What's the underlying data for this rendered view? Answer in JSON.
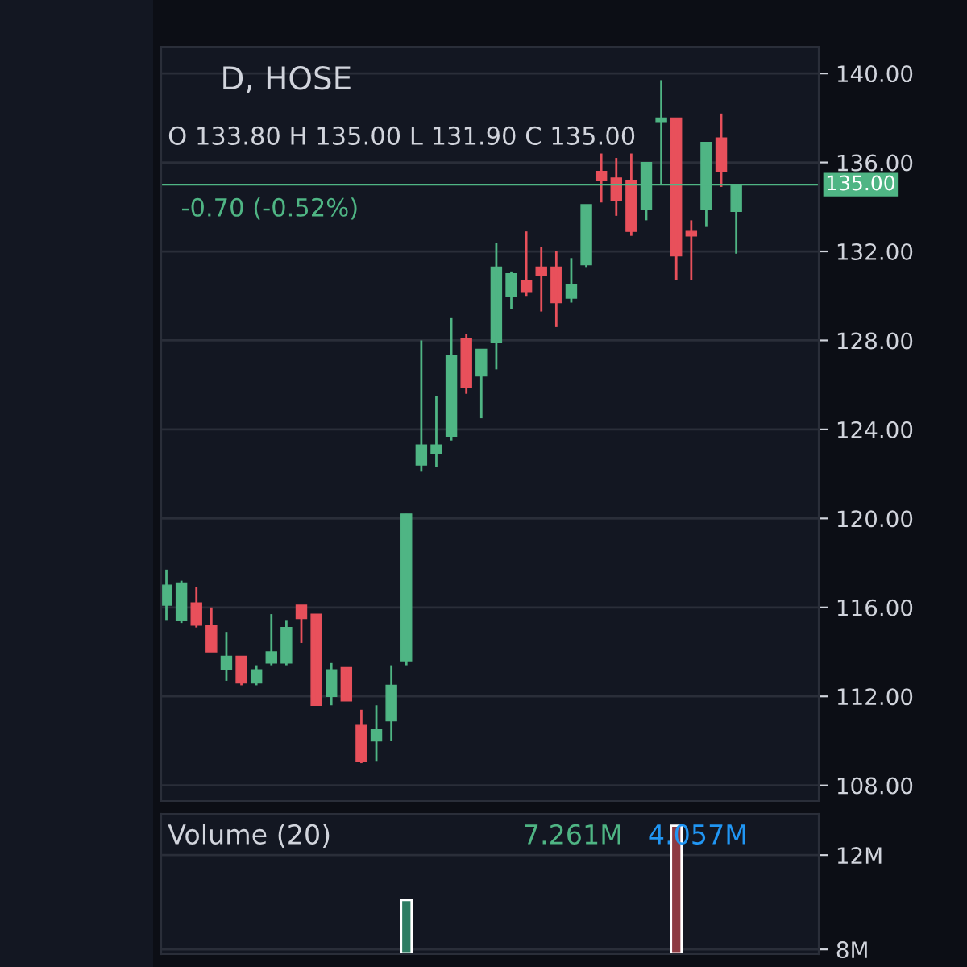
{
  "chart_data": [
    {
      "type": "candlestick",
      "title": "D, HOSE",
      "categories": [
        null,
        null,
        null,
        null,
        null,
        null,
        null,
        null,
        null,
        null,
        null,
        null,
        null,
        null,
        null,
        null,
        null,
        null,
        null,
        null,
        null,
        null,
        null,
        null,
        null,
        null,
        null,
        null,
        null,
        null,
        null,
        null,
        null,
        null,
        null,
        null,
        null,
        null,
        null
      ],
      "ohlc": [
        [
          116.1,
          117.7,
          115.4,
          117.0
        ],
        [
          115.4,
          117.2,
          115.3,
          117.1
        ],
        [
          116.2,
          116.9,
          115.1,
          115.2
        ],
        [
          115.2,
          116.0,
          114.0,
          114.0
        ],
        [
          113.2,
          114.9,
          112.7,
          113.8
        ],
        [
          113.8,
          113.8,
          112.5,
          112.6
        ],
        [
          112.6,
          113.4,
          112.5,
          113.2
        ],
        [
          113.5,
          115.7,
          113.4,
          114.0
        ],
        [
          113.5,
          115.4,
          113.4,
          115.1
        ],
        [
          116.1,
          116.1,
          114.4,
          115.5
        ],
        [
          115.7,
          115.7,
          111.6,
          111.6
        ],
        [
          112.0,
          113.5,
          111.6,
          113.2
        ],
        [
          113.3,
          113.3,
          111.8,
          111.8
        ],
        [
          110.7,
          111.4,
          109.0,
          109.1
        ],
        [
          110.0,
          111.6,
          109.1,
          110.5
        ],
        [
          110.9,
          113.4,
          110.0,
          112.5
        ],
        [
          113.6,
          120.2,
          113.4,
          120.2
        ],
        [
          122.4,
          128.0,
          122.1,
          123.3
        ],
        [
          122.9,
          125.5,
          122.3,
          123.3
        ],
        [
          123.7,
          129.0,
          123.5,
          127.3
        ],
        [
          128.1,
          128.3,
          125.6,
          125.9
        ],
        [
          126.4,
          127.6,
          124.5,
          127.6
        ],
        [
          127.9,
          132.4,
          126.7,
          131.3
        ],
        [
          130.0,
          131.1,
          129.4,
          131.0
        ],
        [
          130.7,
          132.9,
          130.0,
          130.2
        ],
        [
          131.3,
          132.2,
          129.3,
          130.9
        ],
        [
          131.3,
          132.0,
          128.6,
          129.7
        ],
        [
          129.9,
          131.7,
          129.7,
          130.5
        ],
        [
          131.4,
          134.1,
          131.3,
          134.1
        ],
        [
          135.6,
          136.4,
          134.2,
          135.2
        ],
        [
          135.3,
          136.2,
          133.6,
          134.3
        ],
        [
          135.2,
          136.4,
          132.7,
          132.9
        ],
        [
          133.9,
          136.0,
          133.4,
          136.0
        ],
        [
          137.8,
          139.7,
          135.0,
          138.0
        ],
        [
          138.0,
          138.0,
          130.7,
          131.8
        ],
        [
          132.9,
          133.4,
          130.7,
          132.7
        ],
        [
          133.9,
          136.9,
          133.1,
          136.9
        ],
        [
          137.1,
          138.2,
          134.9,
          135.6
        ],
        [
          133.8,
          135.0,
          131.9,
          135.0
        ]
      ],
      "colors": [
        "#4fb584",
        "#4fb584",
        "#e8505b",
        "#e8505b",
        "#4fb584",
        "#e8505b",
        "#4fb584",
        "#4fb584",
        "#4fb584",
        "#e8505b",
        "#e8505b",
        "#4fb584",
        "#e8505b",
        "#e8505b",
        "#4fb584",
        "#4fb584",
        "#4fb584",
        "#4fb584",
        "#4fb584",
        "#4fb584",
        "#e8505b",
        "#4fb584",
        "#4fb584",
        "#4fb584",
        "#e8505b",
        "#e8505b",
        "#e8505b",
        "#4fb584",
        "#4fb584",
        "#e8505b",
        "#e8505b",
        "#e8505b",
        "#4fb584",
        "#4fb584",
        "#e8505b",
        "#e8505b",
        "#4fb584",
        "#e8505b",
        "#4fb584"
      ],
      "ylim": [
        107.3,
        141.2
      ],
      "yticks": [
        {
          "value": 108,
          "label": "108.00"
        },
        {
          "value": 112,
          "label": "112.00"
        },
        {
          "value": 116,
          "label": "116.00"
        },
        {
          "value": 120,
          "label": "120.00"
        },
        {
          "value": 124,
          "label": "124.00"
        },
        {
          "value": 128,
          "label": "128.00"
        },
        {
          "value": 132,
          "label": "132.00"
        },
        {
          "value": 136,
          "label": "136.00"
        },
        {
          "value": 140,
          "label": "140.00"
        }
      ],
      "ref_lines": [
        {
          "axis": "y",
          "value": 135,
          "label": "135.00",
          "color": "#4fb584",
          "line_style": "solid"
        }
      ],
      "annotations": [
        "O 133.80 H 135.00 L 131.90 C 135.00",
        "-0.70 (-0.52%)"
      ],
      "grid": "y"
    },
    {
      "type": "bar",
      "title": "Volume (20)",
      "categories": [
        null,
        null,
        null,
        null,
        null,
        null,
        null,
        null,
        null,
        null,
        null,
        null,
        null,
        null,
        null,
        null,
        null,
        null,
        null,
        null,
        null,
        null,
        null,
        null,
        null,
        null,
        null,
        null,
        null,
        null,
        null,
        null,
        null,
        null,
        null,
        null,
        null,
        null,
        null
      ],
      "values": [
        null,
        null,
        null,
        null,
        null,
        null,
        null,
        null,
        null,
        null,
        null,
        null,
        null,
        null,
        null,
        null,
        10.1,
        null,
        null,
        null,
        null,
        null,
        null,
        null,
        null,
        null,
        null,
        null,
        null,
        null,
        null,
        null,
        null,
        null,
        13.25,
        null,
        null,
        null,
        null
      ],
      "colors": [
        "#2e7d63",
        "#2e7d63",
        "#8e3a42",
        "#8e3a42",
        "#2e7d63",
        "#8e3a42",
        "#2e7d63",
        "#2e7d63",
        "#2e7d63",
        "#8e3a42",
        "#8e3a42",
        "#2e7d63",
        "#8e3a42",
        "#8e3a42",
        "#2e7d63",
        "#2e7d63",
        "#2e7d63",
        "#2e7d63",
        "#2e7d63",
        "#2e7d63",
        "#8e3a42",
        "#2e7d63",
        "#2e7d63",
        "#2e7d63",
        "#8e3a42",
        "#8e3a42",
        "#8e3a42",
        "#2e7d63",
        "#2e7d63",
        "#8e3a42",
        "#8e3a42",
        "#8e3a42",
        "#2e7d63",
        "#2e7d63",
        "#8e3a42",
        "#8e3a42",
        "#2e7d63",
        "#8e3a42",
        "#2e7d63"
      ],
      "ylim": [
        7.8,
        13.75
      ],
      "yticks": [
        {
          "value": 8,
          "label": "8M"
        },
        {
          "value": 12,
          "label": "12M"
        }
      ],
      "annotations": [
        "7.261M",
        "4.057M"
      ],
      "grid": "y"
    }
  ]
}
